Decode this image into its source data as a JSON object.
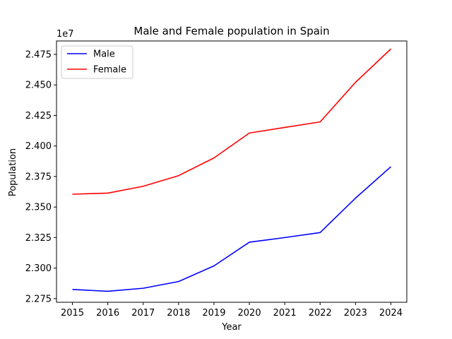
{
  "chart_data": {
    "type": "line",
    "title": "Male and Female population in Spain",
    "xlabel": "Year",
    "ylabel": "Population",
    "y_offset_label": "1e7",
    "x": [
      2015,
      2016,
      2017,
      2018,
      2019,
      2020,
      2021,
      2022,
      2023,
      2024
    ],
    "x_ticks": [
      "2015",
      "2016",
      "2017",
      "2018",
      "2019",
      "2020",
      "2021",
      "2022",
      "2023",
      "2024"
    ],
    "y_ticks": [
      "2.275",
      "2.300",
      "2.325",
      "2.350",
      "2.375",
      "2.400",
      "2.425",
      "2.450",
      "2.475"
    ],
    "y_tick_values": [
      22750000,
      23000000,
      23250000,
      23500000,
      23750000,
      24000000,
      24250000,
      24500000,
      24750000
    ],
    "ylim": [
      22720000,
      24860000
    ],
    "xlim": [
      2014.55,
      2024.45
    ],
    "grid": false,
    "legend_position": "upper-left",
    "series": [
      {
        "name": "Male",
        "color": "#0000ff",
        "values": [
          22825000,
          22810000,
          22835000,
          22890000,
          23018000,
          23212000,
          23250000,
          23291000,
          23573000,
          23830000
        ]
      },
      {
        "name": "Female",
        "color": "#ff0000",
        "values": [
          23605000,
          23614000,
          23670000,
          23757000,
          23902000,
          24106000,
          24152000,
          24197000,
          24521000,
          24795000
        ]
      }
    ]
  }
}
